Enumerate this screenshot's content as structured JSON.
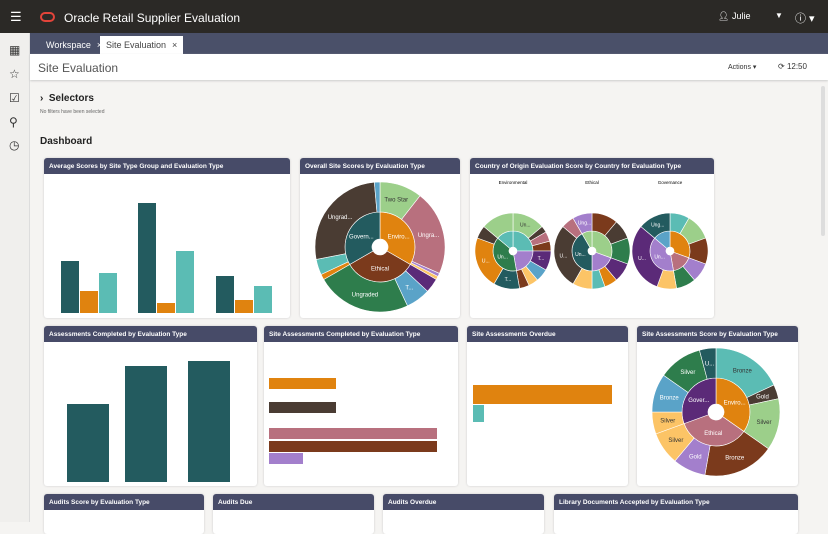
{
  "app": {
    "title": "Oracle Retail Supplier Evaluation",
    "user": "Julie",
    "menu_icon": "hamburger-icon",
    "help_icon": "help-icon"
  },
  "sidebar": [
    "dashboard-icon",
    "star-icon",
    "task-icon",
    "user-icon",
    "clock-icon"
  ],
  "tabs": [
    {
      "label": "Workspace",
      "close": "×"
    },
    {
      "label": "Site Evaluation",
      "close": "×"
    }
  ],
  "page": {
    "title": "Site Evaluation",
    "actions": "Actions ▾",
    "refresh_time": "12:50"
  },
  "selectors": {
    "label": "Selectors",
    "subtext": "No filters have been selected"
  },
  "dashboard_label": "Dashboard",
  "colors": {
    "header": "#474b68",
    "tabbar": "#4a5069",
    "topbar": "#2b2926"
  },
  "cards": {
    "avg": {
      "title": "Average Scores by Site Type Group and Evaluation Type"
    },
    "overall": {
      "title": "Overall Site Scores by Evaluation Type"
    },
    "country": {
      "title": "Country of Origin Evaluation Score by Country for Evaluation Type",
      "labels": [
        "Environmental",
        "Ethical",
        "Governance"
      ]
    },
    "assess": {
      "title": "Assessments Completed by Evaluation Type"
    },
    "siteassess": {
      "title": "Site Assessments Completed by Evaluation Type"
    },
    "overdue": {
      "title": "Site Assessments Overdue"
    },
    "score": {
      "title": "Site Assessments Score by Evaluation Type"
    },
    "audits": {
      "title": "Audits Score by Evaluation Type"
    },
    "auditsdue": {
      "title": "Audits Due"
    },
    "auditsoverdue": {
      "title": "Audits Overdue"
    },
    "library": {
      "title": "Library Documents Accepted by Evaluation Type"
    }
  },
  "chart_data": [
    {
      "id": "avg",
      "type": "bar",
      "groups": 3,
      "series": [
        {
          "color": "#235b5f",
          "values": [
            52,
            110,
            37
          ]
        },
        {
          "color": "#e0830f",
          "values": [
            22,
            10,
            13
          ]
        },
        {
          "color": "#5bbcb4",
          "values": [
            40,
            62,
            27
          ]
        }
      ]
    },
    {
      "id": "assess",
      "type": "bar",
      "color": "#235b5f",
      "values": [
        78,
        116,
        121
      ]
    },
    {
      "id": "siteassess",
      "type": "hbar",
      "bars": [
        {
          "v": 67,
          "c": "#e0830f"
        },
        {
          "v": 67,
          "c": "#4a3c33"
        },
        {
          "v": 168,
          "c": "#b8707e",
          "gap": 0
        },
        {
          "v": 168,
          "c": "#7b3a1c"
        },
        {
          "v": 34,
          "c": "#a37fcc"
        }
      ]
    },
    {
      "id": "overdue",
      "type": "hbar",
      "bars": [
        {
          "v": 139,
          "c": "#e0830f"
        },
        {
          "v": 11,
          "c": "#5bbcb4"
        }
      ]
    },
    {
      "id": "overall",
      "type": "sunburst",
      "inner": [
        {
          "label": "Enviro...",
          "v": 120,
          "c": "#e0830f",
          "children": [
            {
              "label": "Two Star",
              "v": 38,
              "c": "#9ccf8a"
            },
            {
              "label": "Ungra...",
              "v": 76,
              "c": "#b8707e"
            },
            {
              "v": 3,
              "c": "#a37fcc"
            },
            {
              "v": 3,
              "c": "#fcc466"
            }
          ]
        },
        {
          "label": "Ethical",
          "v": 120,
          "c": "#7b3a1c",
          "children": [
            {
              "v": 13,
              "c": "#5b2a78"
            },
            {
              "label": "T...",
              "v": 22,
              "c": "#5aa3c8"
            },
            {
              "label": "Ungraded",
              "v": 85,
              "c": "#2e7d4c"
            }
          ]
        },
        {
          "label": "Govern...",
          "v": 120,
          "c": "#235b5f",
          "children": [
            {
              "v": 5,
              "c": "#e0830f"
            },
            {
              "v": 14,
              "c": "#5bbcb4"
            },
            {
              "label": "Ungrad...",
              "v": 96,
              "c": "#4a3c33"
            },
            {
              "v": 5,
              "c": "#5aa3c8"
            }
          ]
        }
      ]
    },
    {
      "id": "score",
      "type": "sunburst",
      "inner": [
        {
          "label": "Enviro...",
          "v": 125,
          "c": "#e0830f",
          "children": [
            {
              "label": "Bronze",
              "v": 65,
              "c": "#5bbcb4"
            },
            {
              "label": "Gold",
              "v": 13,
              "c": "#4a3c33"
            },
            {
              "label": "Silver",
              "v": 47,
              "c": "#9ccf8a"
            }
          ]
        },
        {
          "label": "Ethical",
          "v": 125,
          "c": "#b8707e",
          "children": [
            {
              "label": "Bronze",
              "v": 65,
              "c": "#7b3a1c"
            },
            {
              "label": "Gold",
              "v": 30,
              "c": "#a37fcc"
            },
            {
              "label": "Silver",
              "v": 30,
              "c": "#fcc466"
            }
          ]
        },
        {
          "label": "Gover...",
          "v": 110,
          "c": "#5b2a78",
          "children": [
            {
              "label": "Silver",
              "v": 20,
              "c": "#fcc466"
            },
            {
              "label": "Bronze",
              "v": 35,
              "c": "#5aa3c8"
            },
            {
              "label": "Silver",
              "v": 40,
              "c": "#2e7d4c"
            },
            {
              "label": "U...",
              "v": 15,
              "c": "#235b5f"
            }
          ]
        }
      ]
    },
    {
      "id": "country-env",
      "type": "sunburst",
      "inner": [
        {
          "v": 90,
          "c": "#5bbcb4",
          "children": [
            {
              "label": "Un...",
              "v": 50,
              "c": "#9ccf8a"
            },
            {
              "v": 10,
              "c": "#4a3c33"
            },
            {
              "v": 15,
              "c": "#b8707e"
            },
            {
              "v": 15,
              "c": "#7b3a1c"
            }
          ]
        },
        {
          "v": 80,
          "c": "#a37fcc",
          "children": [
            {
              "label": "T...",
              "v": 30,
              "c": "#5b2a78"
            },
            {
              "v": 20,
              "c": "#5aa3c8"
            },
            {
              "v": 15,
              "c": "#fcc466"
            },
            {
              "v": 15,
              "c": "#7b3a1c"
            }
          ]
        },
        {
          "label": "Un...",
          "v": 140,
          "c": "#2e7d4c",
          "children": [
            {
              "label": "T...",
              "v": 40,
              "c": "#235b5f"
            },
            {
              "label": "U...",
              "v": 80,
              "c": "#e0830f"
            },
            {
              "v": 20,
              "c": "#4a3c33"
            }
          ]
        },
        {
          "v": 50,
          "c": "#5bbcb4",
          "children": [
            {
              "v": 50,
              "c": "#9ccf8a"
            }
          ]
        }
      ]
    },
    {
      "id": "country-eth",
      "type": "sunburst",
      "inner": [
        {
          "v": 110,
          "c": "#9ccf8a",
          "children": [
            {
              "v": 40,
              "c": "#7b3a1c"
            },
            {
              "v": 30,
              "c": "#4a3c33"
            },
            {
              "v": 40,
              "c": "#2e7d4c"
            }
          ]
        },
        {
          "v": 70,
          "c": "#a37fcc",
          "children": [
            {
              "v": 30,
              "c": "#5b2a78"
            },
            {
              "v": 20,
              "c": "#e0830f"
            },
            {
              "v": 20,
              "c": "#5bbcb4"
            }
          ]
        },
        {
          "label": "Un...",
          "v": 150,
          "c": "#235b5f",
          "children": [
            {
              "v": 30,
              "c": "#fcc466"
            },
            {
              "label": "U...",
              "v": 100,
              "c": "#4a3c33"
            },
            {
              "v": 20,
              "c": "#b8707e"
            }
          ]
        },
        {
          "v": 30,
          "c": "#9ccf8a",
          "children": [
            {
              "label": "Ung...",
              "v": 30,
              "c": "#a37fcc"
            }
          ]
        }
      ]
    },
    {
      "id": "country-gov",
      "type": "sunburst",
      "inner": [
        {
          "v": 110,
          "c": "#e0830f",
          "children": [
            {
              "v": 30,
              "c": "#5bbcb4"
            },
            {
              "v": 40,
              "c": "#9ccf8a"
            },
            {
              "v": 40,
              "c": "#7b3a1c"
            }
          ]
        },
        {
          "v": 60,
          "c": "#b8707e",
          "children": [
            {
              "v": 30,
              "c": "#a37fcc"
            },
            {
              "v": 30,
              "c": "#2e7d4c"
            }
          ]
        },
        {
          "label": "Un...",
          "v": 140,
          "c": "#a37fcc",
          "children": [
            {
              "v": 30,
              "c": "#fcc466"
            },
            {
              "label": "U...",
              "v": 110,
              "c": "#5b2a78"
            }
          ]
        },
        {
          "v": 50,
          "c": "#5aa3c8",
          "children": [
            {
              "label": "Ung...",
              "v": 50,
              "c": "#235b5f"
            }
          ]
        }
      ]
    }
  ]
}
